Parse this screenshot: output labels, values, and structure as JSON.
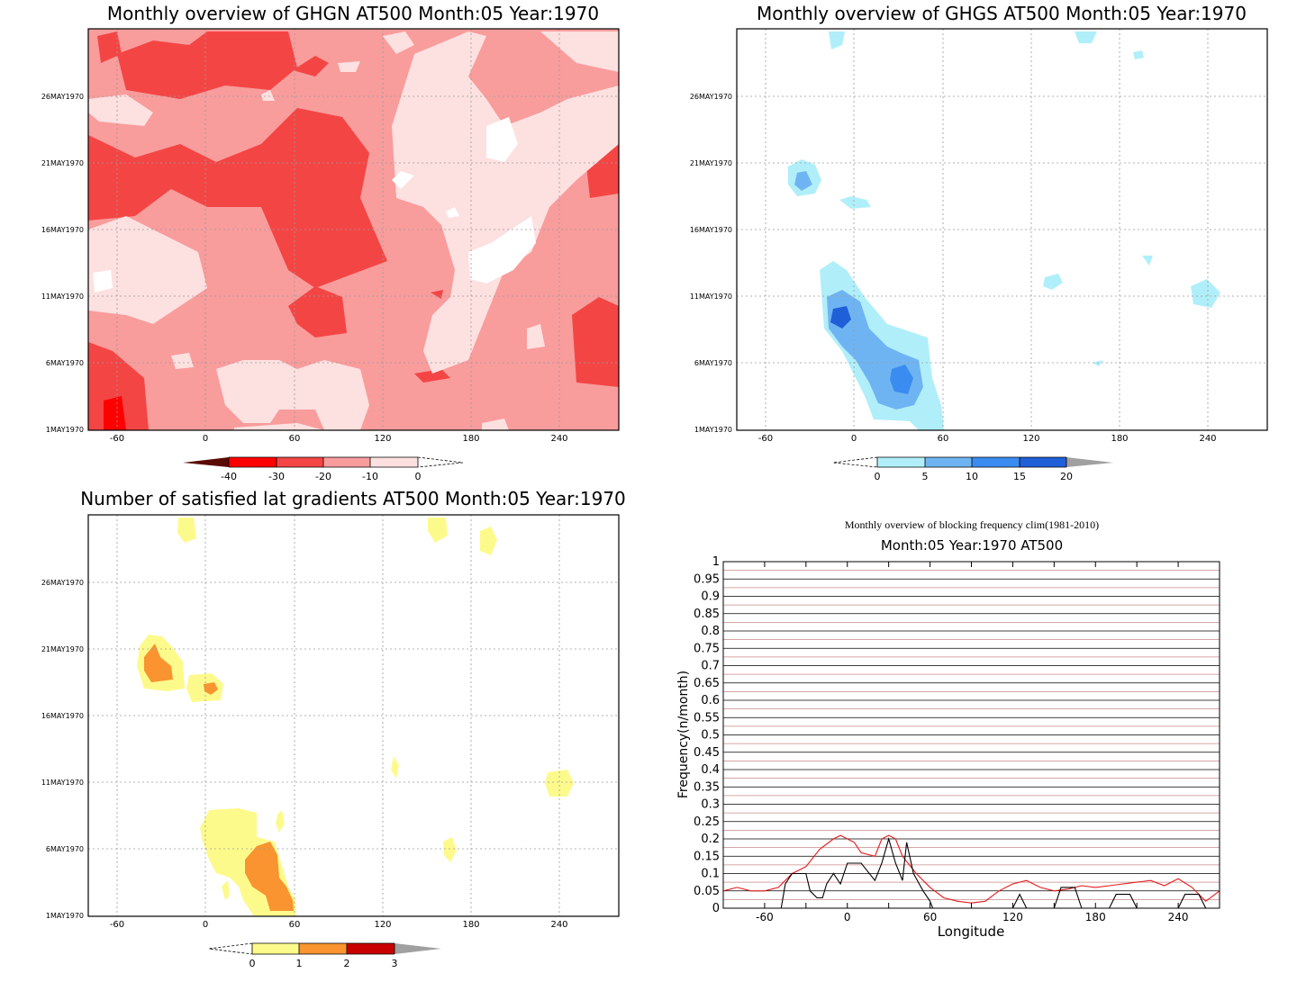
{
  "panels": [
    {
      "title": "Monthly overview of GHGN AT500 Month:05 Year:1970",
      "x_ticks": [
        "-60",
        "0",
        "60",
        "120",
        "180",
        "240"
      ],
      "y_ticks": [
        "1MAY1970",
        "6MAY1970",
        "11MAY1970",
        "16MAY1970",
        "21MAY1970",
        "26MAY1970"
      ],
      "colorbar": {
        "labels": [
          "-40",
          "-30",
          "-20",
          "-10",
          "0"
        ],
        "colors": [
          "#5a0a00",
          "#ff0000",
          "#f44545",
          "#f99c9c",
          "#fde0e0",
          "#ffffff"
        ]
      }
    },
    {
      "title": "Monthly overview of GHGS AT500 Month:05 Year:1970",
      "x_ticks": [
        "-60",
        "0",
        "60",
        "120",
        "180",
        "240"
      ],
      "y_ticks": [
        "1MAY1970",
        "6MAY1970",
        "11MAY1970",
        "16MAY1970",
        "21MAY1970",
        "26MAY1970"
      ],
      "colorbar": {
        "labels": [
          "0",
          "5",
          "10",
          "15",
          "20"
        ],
        "colors": [
          "#ffffff",
          "#b0effa",
          "#6fb4f2",
          "#3a8cf0",
          "#1f5fd8",
          "#a0a0a0"
        ]
      }
    },
    {
      "title": "Number of satisfied lat gradients AT500 Month:05 Year:1970",
      "x_ticks": [
        "-60",
        "0",
        "60",
        "120",
        "180",
        "240"
      ],
      "y_ticks": [
        "1MAY1970",
        "6MAY1970",
        "11MAY1970",
        "16MAY1970",
        "21MAY1970",
        "26MAY1970"
      ],
      "colorbar": {
        "labels": [
          "0",
          "1",
          "2",
          "3"
        ],
        "colors": [
          "#ffffff",
          "#fdfa8c",
          "#f99430",
          "#c80000",
          "#a0a0a0"
        ]
      }
    }
  ],
  "chart_data": {
    "type": "line",
    "title": "Monthly overview of blocking frequency clim(1981-2010)",
    "subtitle": "Month:05 Year:1970  AT500",
    "xlabel": "Longitude",
    "ylabel": "Frequency(n/month)",
    "xlim": [
      -90,
      270
    ],
    "ylim": [
      0,
      1
    ],
    "x_ticks": [
      "-60",
      "0",
      "60",
      "120",
      "180",
      "240"
    ],
    "y_ticks": [
      "0",
      "0.05",
      "0.1",
      "0.15",
      "0.2",
      "0.25",
      "0.3",
      "0.35",
      "0.4",
      "0.45",
      "0.5",
      "0.55",
      "0.6",
      "0.65",
      "0.7",
      "0.75",
      "0.8",
      "0.85",
      "0.9",
      "0.95",
      "1"
    ],
    "series": [
      {
        "color": "#e41a1c",
        "x": [
          -90,
          -80,
          -70,
          -60,
          -50,
          -40,
          -30,
          -20,
          -10,
          -5,
          0,
          5,
          10,
          20,
          25,
          30,
          35,
          40,
          50,
          60,
          70,
          80,
          90,
          100,
          110,
          120,
          130,
          140,
          150,
          160,
          170,
          180,
          190,
          200,
          210,
          220,
          230,
          240,
          250,
          260,
          270
        ],
        "y": [
          0.05,
          0.06,
          0.05,
          0.05,
          0.06,
          0.1,
          0.12,
          0.17,
          0.2,
          0.21,
          0.2,
          0.19,
          0.16,
          0.15,
          0.2,
          0.21,
          0.2,
          0.15,
          0.1,
          0.06,
          0.03,
          0.02,
          0.015,
          0.02,
          0.05,
          0.07,
          0.08,
          0.06,
          0.05,
          0.055,
          0.065,
          0.06,
          0.065,
          0.07,
          0.075,
          0.08,
          0.065,
          0.085,
          0.06,
          0.02,
          0.05
        ]
      },
      {
        "color": "#000000",
        "x": [
          -90,
          -48,
          -45,
          -40,
          -30,
          -27,
          -22,
          -18,
          -15,
          -10,
          -5,
          0,
          5,
          10,
          20,
          25,
          30,
          35,
          40,
          43,
          48,
          55,
          60,
          62,
          120,
          125,
          130,
          150,
          155,
          165,
          170,
          190,
          195,
          205,
          210,
          240,
          245,
          255,
          260,
          270
        ],
        "y": [
          0,
          0,
          0.07,
          0.1,
          0.1,
          0.05,
          0.03,
          0.03,
          0.07,
          0.1,
          0.07,
          0.13,
          0.13,
          0.13,
          0.08,
          0.13,
          0.2,
          0.13,
          0.08,
          0.19,
          0.1,
          0.05,
          0.02,
          0,
          0,
          0.04,
          0,
          0,
          0.06,
          0.06,
          0,
          0,
          0.04,
          0.04,
          0,
          0,
          0.04,
          0.04,
          0,
          0
        ]
      }
    ],
    "grid": true
  }
}
